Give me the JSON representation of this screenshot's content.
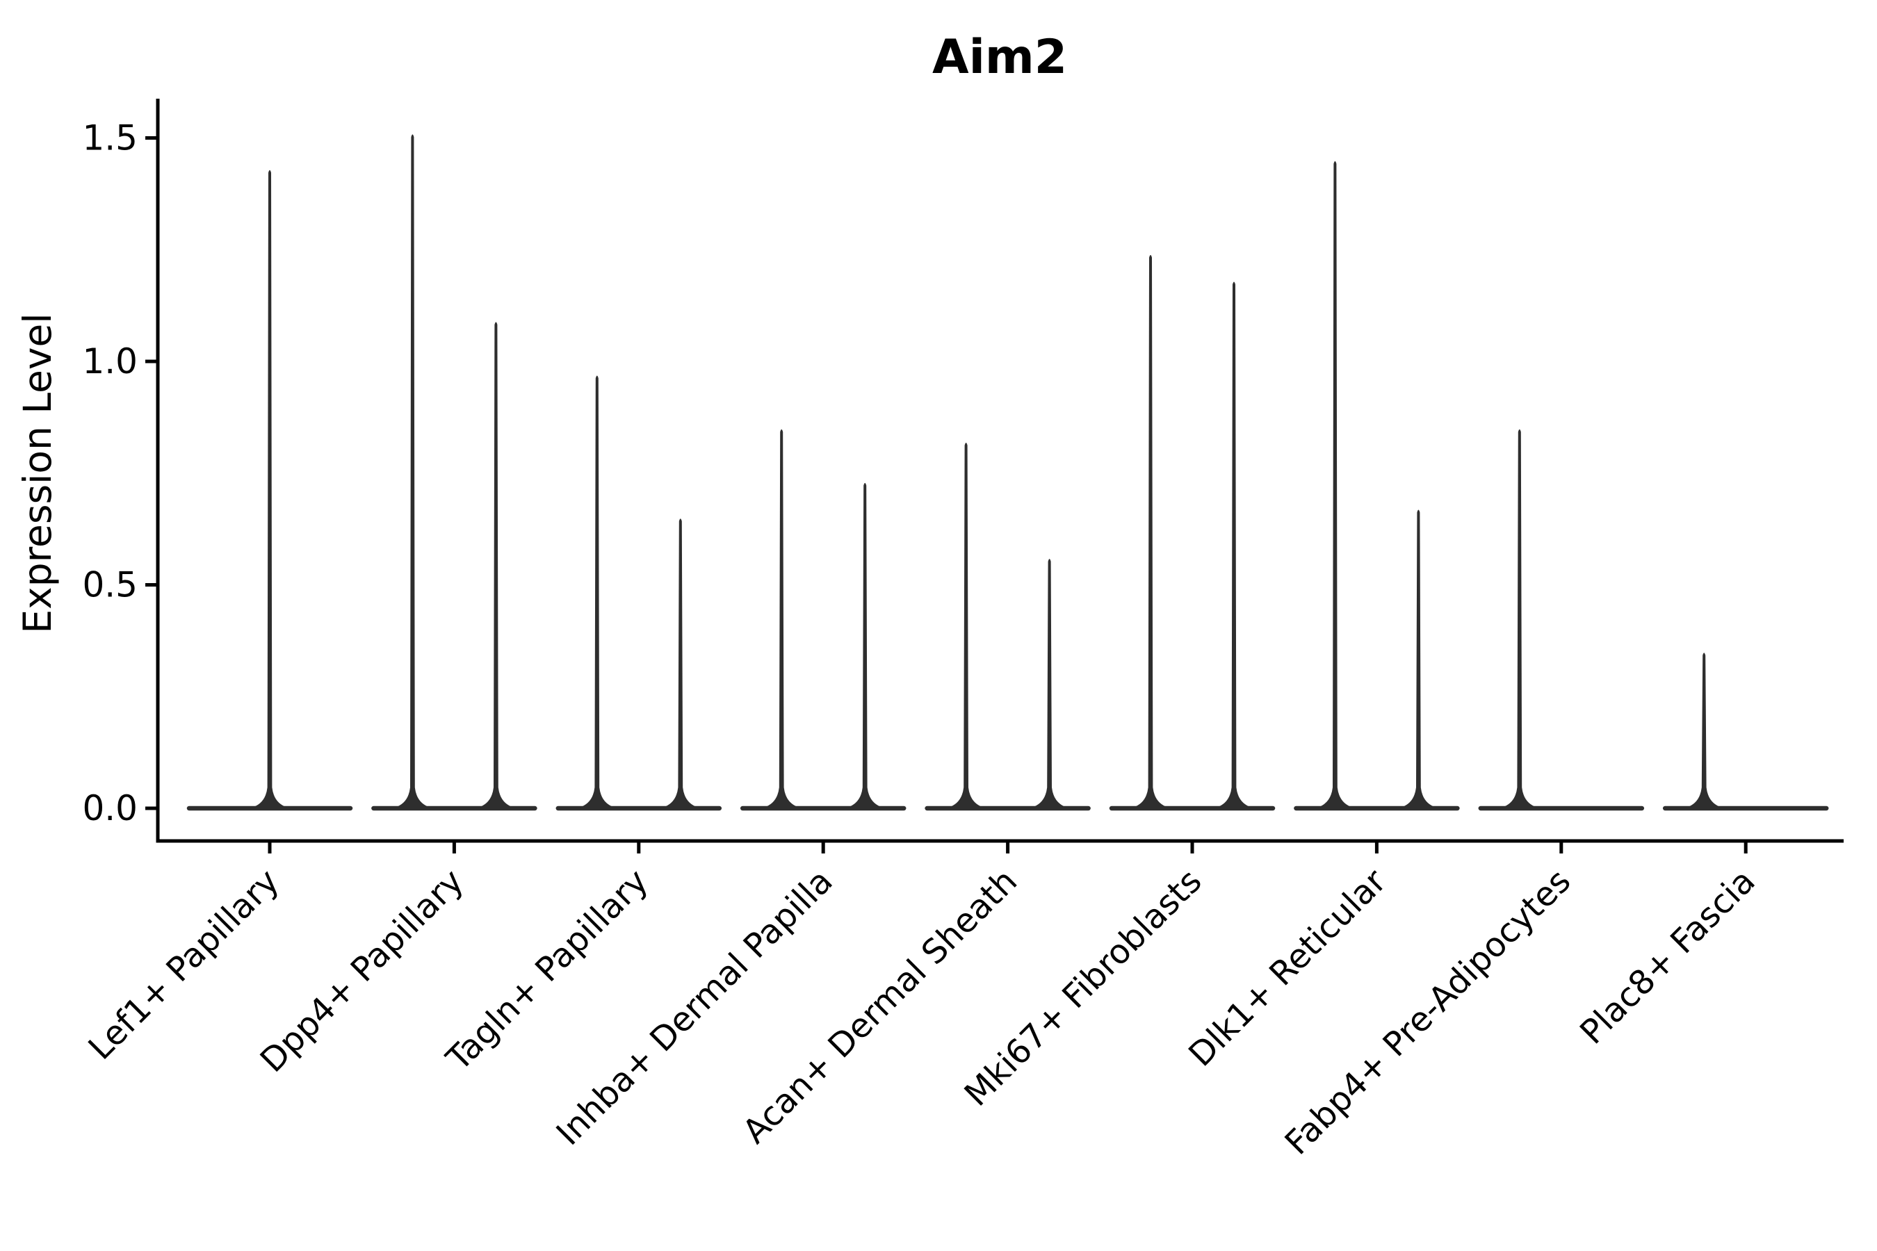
{
  "chart_data": {
    "type": "violin",
    "title": "Aim2",
    "xlabel": "",
    "ylabel": "Expression Level",
    "ylim": [
      0,
      1.58
    ],
    "baseline_value": 0.0,
    "grid": false,
    "legend": "none",
    "x_tick_rotation": 45,
    "y_ticks": [
      {
        "label": "0.0",
        "value": 0.0
      },
      {
        "label": "0.5",
        "value": 0.5
      },
      {
        "label": "1.0",
        "value": 1.0
      },
      {
        "label": "1.5",
        "value": 1.5
      }
    ],
    "categories": [
      "Lef1+ Papillary",
      "Dpp4+ Papillary",
      "Tagln+ Papillary",
      "Inhba+ Dermal Papilla",
      "Acan+ Dermal Sheath",
      "Mki67+ Fibroblasts",
      "Dlk1+ Reticular",
      "Fabp4+ Pre-Adipocytes",
      "Plac8+ Fascia"
    ],
    "violin_shape_note": "zero-inflated: wide flat base at expression 0 with a single thin spike reaching the max expression value",
    "violins": [
      {
        "category": "Lef1+ Papillary",
        "groups": [
          {
            "position": "full",
            "max_expression": 1.43
          }
        ]
      },
      {
        "category": "Dpp4+ Papillary",
        "groups": [
          {
            "position": "left",
            "max_expression": 1.51
          },
          {
            "position": "right",
            "max_expression": 1.09
          }
        ]
      },
      {
        "category": "Tagln+ Papillary",
        "groups": [
          {
            "position": "left",
            "max_expression": 0.97
          },
          {
            "position": "right",
            "max_expression": 0.65
          }
        ]
      },
      {
        "category": "Inhba+ Dermal Papilla",
        "groups": [
          {
            "position": "left",
            "max_expression": 0.85
          },
          {
            "position": "right",
            "max_expression": 0.73
          }
        ]
      },
      {
        "category": "Acan+ Dermal Sheath",
        "groups": [
          {
            "position": "left",
            "max_expression": 0.82
          },
          {
            "position": "right",
            "max_expression": 0.56
          }
        ]
      },
      {
        "category": "Mki67+ Fibroblasts",
        "groups": [
          {
            "position": "left",
            "max_expression": 1.24
          },
          {
            "position": "right",
            "max_expression": 1.18
          }
        ]
      },
      {
        "category": "Dlk1+ Reticular",
        "groups": [
          {
            "position": "left",
            "max_expression": 1.45
          },
          {
            "position": "right",
            "max_expression": 0.67
          }
        ]
      },
      {
        "category": "Fabp4+ Pre-Adipocytes",
        "groups": [
          {
            "position": "left",
            "max_expression": 0.85
          },
          {
            "position": "right",
            "max_expression": 0.0
          }
        ]
      },
      {
        "category": "Plac8+ Fascia",
        "groups": [
          {
            "position": "left",
            "max_expression": 0.35
          },
          {
            "position": "right",
            "max_expression": 0.0
          }
        ]
      }
    ],
    "style": {
      "violin_color": "#2e2e2e",
      "axis_color": "#000000",
      "background_color": "#ffffff"
    }
  }
}
